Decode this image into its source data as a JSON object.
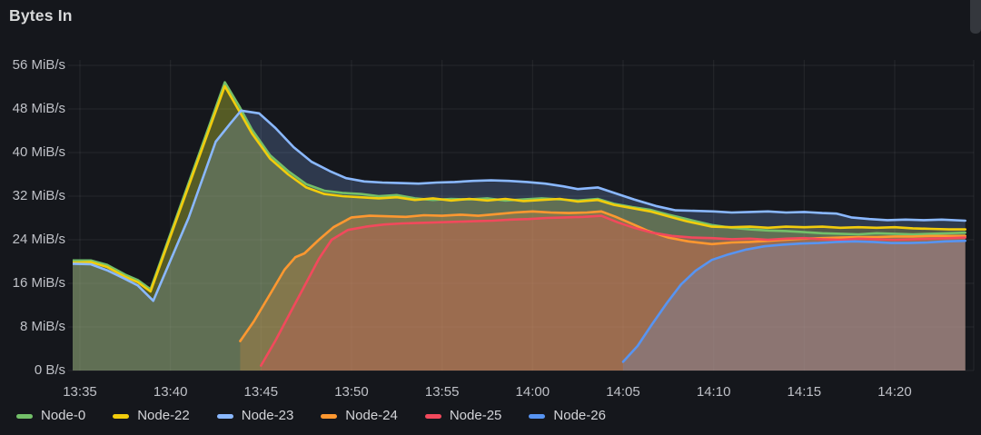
{
  "panel": {
    "title": "Bytes In"
  },
  "colors": {
    "background": "#15171c",
    "grid": "rgba(255,255,255,0.07)",
    "axis_text": "#bfc1c7",
    "title_text": "#d8d9da"
  },
  "chart_data": {
    "type": "area",
    "title": "Bytes In",
    "unit": "MiB/s",
    "grid": "on",
    "legend_position": "bottom-left",
    "ylim": [
      0,
      58
    ],
    "y_ticks": [
      {
        "v": 0,
        "label": "0 B/s"
      },
      {
        "v": 8,
        "label": "8 MiB/s"
      },
      {
        "v": 16,
        "label": "16 MiB/s"
      },
      {
        "v": 24,
        "label": "24 MiB/s"
      },
      {
        "v": 32,
        "label": "32 MiB/s"
      },
      {
        "v": 40,
        "label": "40 MiB/s"
      },
      {
        "v": 48,
        "label": "48 MiB/s"
      },
      {
        "v": 56,
        "label": "56 MiB/s"
      }
    ],
    "x_ticks": [
      {
        "t": 0,
        "label": "13:35"
      },
      {
        "t": 5,
        "label": "13:40"
      },
      {
        "t": 10,
        "label": "13:45"
      },
      {
        "t": 15,
        "label": "13:50"
      },
      {
        "t": 20,
        "label": "13:55"
      },
      {
        "t": 25,
        "label": "14:00"
      },
      {
        "t": 30,
        "label": "14:05"
      },
      {
        "t": 35,
        "label": "14:10"
      },
      {
        "t": 40,
        "label": "14:15"
      },
      {
        "t": 45,
        "label": "14:20"
      }
    ],
    "x_range_minutes": [
      -0.4,
      48.9
    ],
    "series": [
      {
        "name": "Node-0",
        "color": "#73BF69",
        "points": [
          [
            -0.4,
            20.2
          ],
          [
            0.6,
            20.2
          ],
          [
            1.5,
            19.4
          ],
          [
            2.5,
            17.6
          ],
          [
            3.2,
            16.6
          ],
          [
            3.9,
            14.9
          ],
          [
            8,
            52.9
          ],
          [
            8.8,
            48.5
          ],
          [
            9.5,
            44.2
          ],
          [
            10.5,
            39.5
          ],
          [
            11.5,
            36.6
          ],
          [
            12.5,
            34.2
          ],
          [
            13.5,
            33.0
          ],
          [
            14.5,
            32.6
          ],
          [
            15.5,
            32.4
          ],
          [
            16.5,
            32.0
          ],
          [
            17.5,
            32.2
          ],
          [
            18.5,
            31.6
          ],
          [
            19.5,
            31.3
          ],
          [
            20.5,
            31.5
          ],
          [
            21.5,
            31.4
          ],
          [
            22.5,
            31.6
          ],
          [
            23.5,
            31.2
          ],
          [
            24.5,
            31.4
          ],
          [
            25.5,
            31.6
          ],
          [
            26.5,
            31.4
          ],
          [
            27.5,
            31.2
          ],
          [
            28.6,
            31.5
          ],
          [
            29.5,
            30.6
          ],
          [
            30.5,
            30.0
          ],
          [
            31.5,
            29.5
          ],
          [
            32.5,
            28.6
          ],
          [
            33.5,
            27.8
          ],
          [
            34.9,
            26.7
          ],
          [
            36,
            26.2
          ],
          [
            37,
            25.9
          ],
          [
            38,
            25.7
          ],
          [
            39,
            25.6
          ],
          [
            40,
            25.4
          ],
          [
            41,
            25.2
          ],
          [
            42,
            25.1
          ],
          [
            43,
            25.0
          ],
          [
            44,
            25.2
          ],
          [
            45,
            25.1
          ],
          [
            46,
            25.0
          ],
          [
            47,
            25.1
          ],
          [
            48,
            25.2
          ],
          [
            48.9,
            25.3
          ]
        ]
      },
      {
        "name": "Node-22",
        "color": "#F2CC0C",
        "points": [
          [
            -0.4,
            19.8
          ],
          [
            0.6,
            19.9
          ],
          [
            1.5,
            19.0
          ],
          [
            2.5,
            17.2
          ],
          [
            3.2,
            16.2
          ],
          [
            3.9,
            14.5
          ],
          [
            8,
            52.2
          ],
          [
            8.8,
            47.6
          ],
          [
            9.5,
            43.5
          ],
          [
            10.5,
            38.9
          ],
          [
            11.5,
            36.0
          ],
          [
            12.5,
            33.6
          ],
          [
            13.5,
            32.4
          ],
          [
            14.5,
            32.0
          ],
          [
            15.5,
            31.8
          ],
          [
            16.5,
            31.6
          ],
          [
            17.5,
            31.8
          ],
          [
            18.5,
            31.3
          ],
          [
            19.5,
            31.6
          ],
          [
            20.5,
            31.2
          ],
          [
            21.5,
            31.5
          ],
          [
            22.5,
            31.2
          ],
          [
            23.5,
            31.5
          ],
          [
            24.5,
            31.1
          ],
          [
            25.5,
            31.3
          ],
          [
            26.5,
            31.5
          ],
          [
            27.5,
            31.0
          ],
          [
            28.6,
            31.3
          ],
          [
            29.5,
            30.4
          ],
          [
            30.5,
            29.8
          ],
          [
            31.5,
            29.2
          ],
          [
            32.5,
            28.3
          ],
          [
            33.5,
            27.4
          ],
          [
            34.9,
            26.4
          ],
          [
            36,
            26.3
          ],
          [
            37,
            26.4
          ],
          [
            38,
            26.2
          ],
          [
            39,
            26.4
          ],
          [
            40,
            26.3
          ],
          [
            41,
            26.4
          ],
          [
            42,
            26.2
          ],
          [
            43,
            26.3
          ],
          [
            44,
            26.2
          ],
          [
            45,
            26.3
          ],
          [
            46,
            26.1
          ],
          [
            47,
            26.0
          ],
          [
            48,
            25.9
          ],
          [
            48.9,
            25.9
          ]
        ]
      },
      {
        "name": "Node-23",
        "color": "#8AB8FF",
        "points": [
          [
            -0.4,
            19.6
          ],
          [
            0.6,
            19.5
          ],
          [
            1.5,
            18.4
          ],
          [
            2.5,
            16.8
          ],
          [
            3.2,
            15.6
          ],
          [
            4.05,
            12.8
          ],
          [
            6,
            28
          ],
          [
            7.5,
            42
          ],
          [
            8.3,
            45.3
          ],
          [
            8.9,
            47.7
          ],
          [
            9.9,
            47.2
          ],
          [
            10.8,
            44.5
          ],
          [
            11.8,
            41.0
          ],
          [
            12.8,
            38.3
          ],
          [
            13.8,
            36.6
          ],
          [
            14.7,
            35.3
          ],
          [
            15.7,
            34.7
          ],
          [
            16.7,
            34.5
          ],
          [
            17.7,
            34.4
          ],
          [
            18.7,
            34.3
          ],
          [
            19.7,
            34.5
          ],
          [
            20.7,
            34.6
          ],
          [
            21.7,
            34.8
          ],
          [
            22.7,
            34.9
          ],
          [
            23.7,
            34.8
          ],
          [
            24.7,
            34.6
          ],
          [
            25.7,
            34.3
          ],
          [
            26.7,
            33.8
          ],
          [
            27.5,
            33.3
          ],
          [
            28.6,
            33.6
          ],
          [
            29.6,
            32.5
          ],
          [
            30.6,
            31.4
          ],
          [
            31.8,
            30.2
          ],
          [
            32.9,
            29.4
          ],
          [
            34,
            29.3
          ],
          [
            35,
            29.2
          ],
          [
            36,
            29.0
          ],
          [
            37,
            29.1
          ],
          [
            38,
            29.2
          ],
          [
            39,
            29.0
          ],
          [
            40,
            29.1
          ],
          [
            41,
            28.9
          ],
          [
            41.8,
            28.8
          ],
          [
            42.6,
            28.1
          ],
          [
            43.6,
            27.8
          ],
          [
            44.6,
            27.6
          ],
          [
            45.6,
            27.7
          ],
          [
            46.6,
            27.6
          ],
          [
            47.6,
            27.7
          ],
          [
            48.9,
            27.5
          ]
        ]
      },
      {
        "name": "Node-24",
        "color": "#FF9830",
        "points": [
          [
            8.85,
            5.4
          ],
          [
            9.6,
            9.0
          ],
          [
            10.5,
            14.0
          ],
          [
            11.3,
            18.5
          ],
          [
            11.9,
            20.8
          ],
          [
            12.4,
            21.5
          ],
          [
            13.2,
            24.0
          ],
          [
            14.0,
            26.3
          ],
          [
            15.0,
            28.1
          ],
          [
            16,
            28.4
          ],
          [
            17,
            28.3
          ],
          [
            18,
            28.2
          ],
          [
            19,
            28.5
          ],
          [
            20,
            28.4
          ],
          [
            21,
            28.6
          ],
          [
            22,
            28.4
          ],
          [
            23,
            28.7
          ],
          [
            24,
            29.0
          ],
          [
            25,
            29.2
          ],
          [
            26,
            29.0
          ],
          [
            27,
            28.9
          ],
          [
            28,
            29.0
          ],
          [
            28.8,
            29.2
          ],
          [
            29.6,
            28.2
          ],
          [
            30.5,
            26.9
          ],
          [
            31.4,
            25.6
          ],
          [
            32.5,
            24.4
          ],
          [
            33.6,
            23.7
          ],
          [
            34.9,
            23.2
          ],
          [
            36,
            23.5
          ],
          [
            37,
            23.6
          ],
          [
            38,
            23.8
          ],
          [
            39,
            24.0
          ],
          [
            40,
            24.2
          ],
          [
            41,
            24.3
          ],
          [
            42,
            24.4
          ],
          [
            43,
            24.5
          ],
          [
            44,
            24.5
          ],
          [
            45,
            24.6
          ],
          [
            46,
            24.6
          ],
          [
            47,
            24.7
          ],
          [
            48,
            24.7
          ],
          [
            48.9,
            24.7
          ]
        ]
      },
      {
        "name": "Node-25",
        "color": "#F2495C",
        "points": [
          [
            10.0,
            0.9
          ],
          [
            10.8,
            5.5
          ],
          [
            11.6,
            10.5
          ],
          [
            12.4,
            15.5
          ],
          [
            13.2,
            20.5
          ],
          [
            13.9,
            24.0
          ],
          [
            14.8,
            25.8
          ],
          [
            15.8,
            26.4
          ],
          [
            16.8,
            26.8
          ],
          [
            17.8,
            27.0
          ],
          [
            18.8,
            27.1
          ],
          [
            19.8,
            27.2
          ],
          [
            20.8,
            27.3
          ],
          [
            21.8,
            27.4
          ],
          [
            22.8,
            27.5
          ],
          [
            23.8,
            27.7
          ],
          [
            24.8,
            27.8
          ],
          [
            25.8,
            28.0
          ],
          [
            26.8,
            28.1
          ],
          [
            27.8,
            28.2
          ],
          [
            28.8,
            28.4
          ],
          [
            29.7,
            27.2
          ],
          [
            30.6,
            26.2
          ],
          [
            31.6,
            25.3
          ],
          [
            32.7,
            24.7
          ],
          [
            33.8,
            24.4
          ],
          [
            34.9,
            24.3
          ],
          [
            36,
            24.1
          ],
          [
            37,
            24.2
          ],
          [
            38,
            24.0
          ],
          [
            39,
            24.2
          ],
          [
            40,
            24.3
          ],
          [
            41,
            24.1
          ],
          [
            42,
            24.0
          ],
          [
            43,
            24.2
          ],
          [
            44,
            24.1
          ],
          [
            45,
            24.0
          ],
          [
            46,
            24.1
          ],
          [
            47,
            24.2
          ],
          [
            48,
            24.3
          ],
          [
            48.9,
            24.4
          ]
        ]
      },
      {
        "name": "Node-26",
        "color": "#5794F2",
        "points": [
          [
            30.0,
            1.6
          ],
          [
            30.8,
            4.5
          ],
          [
            31.6,
            8.5
          ],
          [
            32.4,
            12.3
          ],
          [
            33.2,
            15.8
          ],
          [
            34.0,
            18.3
          ],
          [
            34.9,
            20.3
          ],
          [
            35.8,
            21.3
          ],
          [
            36.8,
            22.2
          ],
          [
            37.8,
            22.8
          ],
          [
            38.8,
            23.1
          ],
          [
            39.8,
            23.3
          ],
          [
            40.8,
            23.4
          ],
          [
            41.8,
            23.6
          ],
          [
            42.8,
            23.7
          ],
          [
            43.8,
            23.6
          ],
          [
            44.8,
            23.4
          ],
          [
            45.8,
            23.4
          ],
          [
            46.8,
            23.5
          ],
          [
            47.8,
            23.7
          ],
          [
            48.9,
            23.8
          ]
        ]
      }
    ]
  }
}
